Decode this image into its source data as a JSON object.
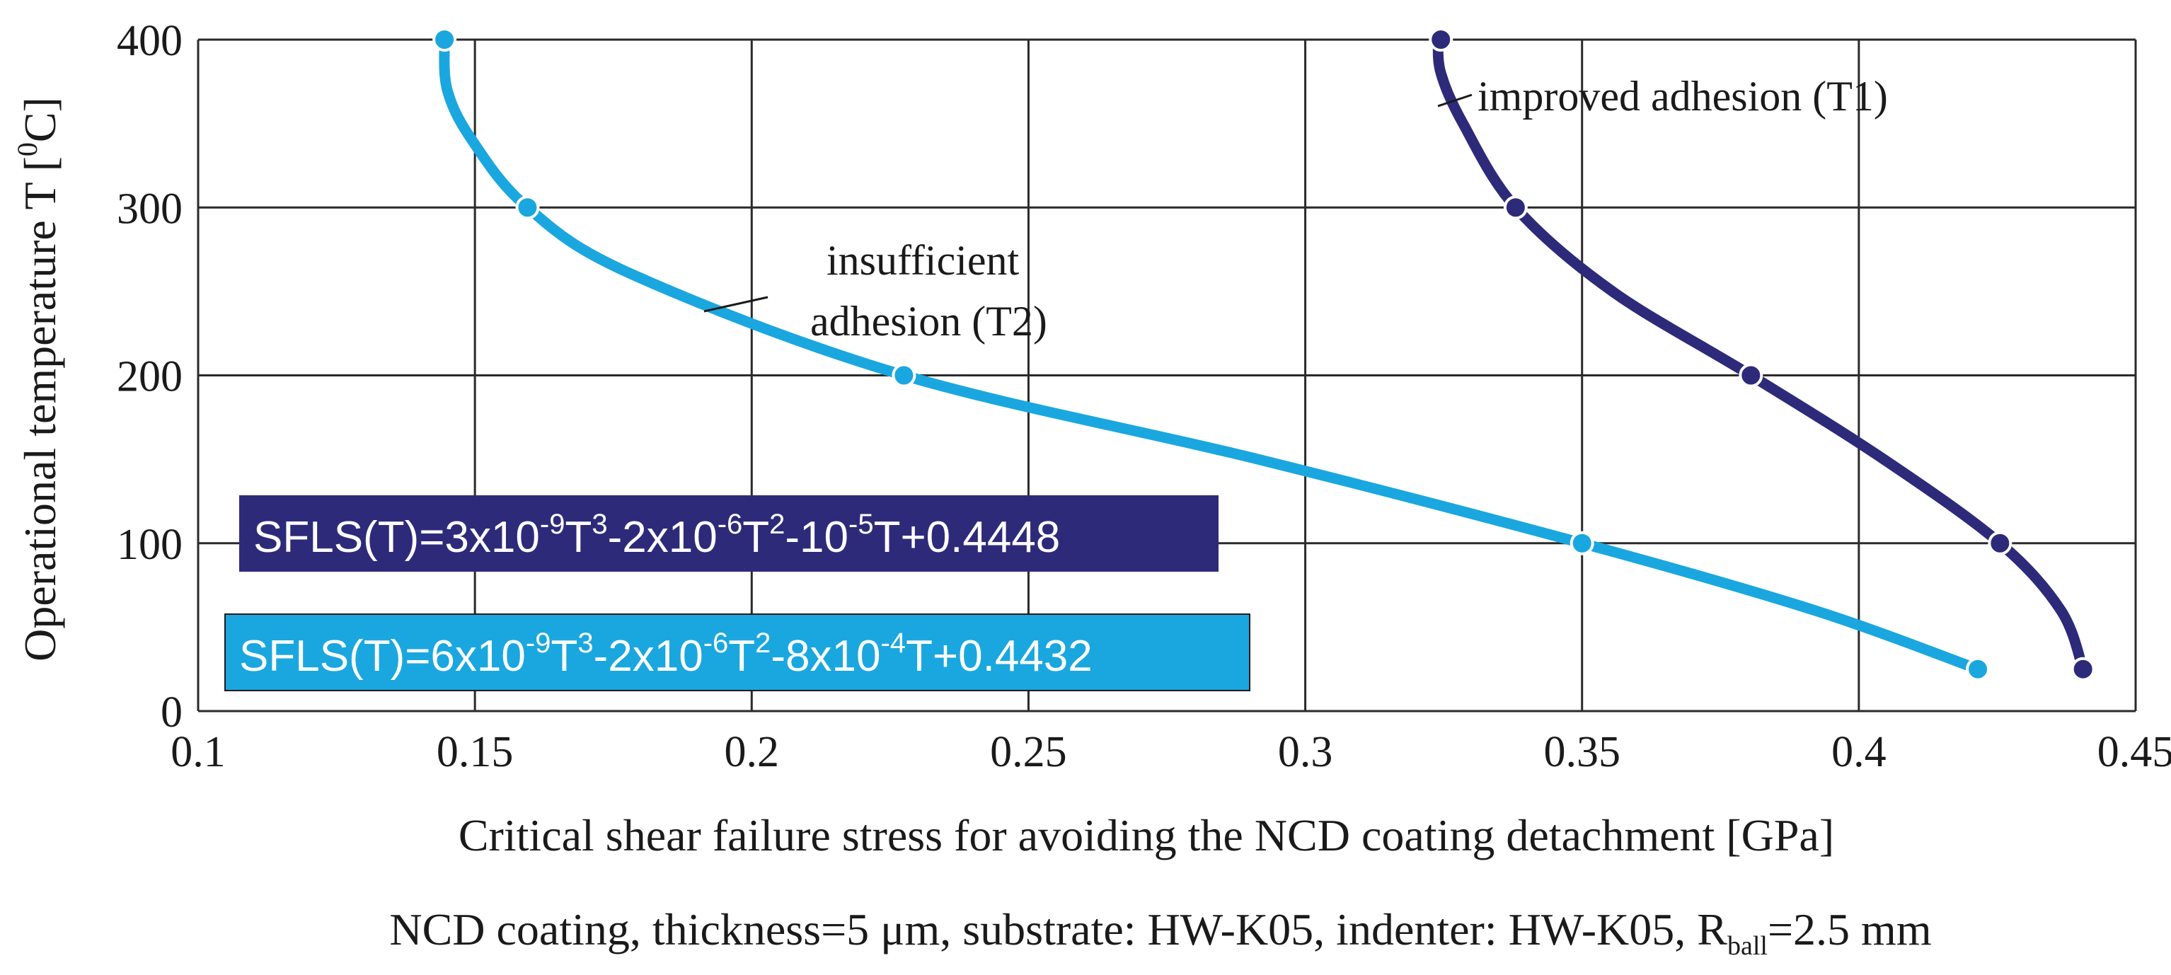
{
  "chart_data": {
    "type": "line",
    "title": "",
    "xlabel": "Critical shear failure stress for avoiding the NCD coating detachment [GPa]",
    "ylabel_main": "Operational temperature T [",
    "ylabel_sup": "0",
    "ylabel_tail": "C]",
    "xlim": [
      0.1,
      0.45
    ],
    "ylim": [
      0,
      400
    ],
    "x_ticks": [
      0.1,
      0.15,
      0.2,
      0.25,
      0.3,
      0.35,
      0.4,
      0.45
    ],
    "x_tick_labels": [
      "0.1",
      "0.15",
      "0.2",
      "0.25",
      "0.3",
      "0.35",
      "0.4",
      "0.45"
    ],
    "y_ticks": [
      0,
      100,
      200,
      300,
      400
    ],
    "y_tick_labels": [
      "0",
      "100",
      "200",
      "300",
      "400"
    ],
    "grid": true,
    "series": [
      {
        "name": "improved adhesion (T1)",
        "color": "#2e2a7a",
        "markers": [
          [
            0.3245,
            400
          ],
          [
            0.338,
            300
          ],
          [
            0.3805,
            200
          ],
          [
            0.4255,
            100
          ],
          [
            0.4405,
            25
          ]
        ],
        "curve": [
          [
            0.324,
            400
          ],
          [
            0.3245,
            380
          ],
          [
            0.3285,
            350
          ],
          [
            0.338,
            300
          ],
          [
            0.3555,
            250
          ],
          [
            0.3805,
            200
          ],
          [
            0.4045,
            150
          ],
          [
            0.4255,
            100
          ],
          [
            0.4365,
            60
          ],
          [
            0.4405,
            25
          ]
        ]
      },
      {
        "name": "insufficient adhesion (T2)",
        "color": "#1aa7df",
        "markers": [
          [
            0.1445,
            400
          ],
          [
            0.1595,
            300
          ],
          [
            0.2275,
            200
          ],
          [
            0.35,
            100
          ],
          [
            0.4215,
            25
          ]
        ],
        "curve": [
          [
            0.1445,
            400
          ],
          [
            0.145,
            370
          ],
          [
            0.1495,
            340
          ],
          [
            0.1595,
            300
          ],
          [
            0.1785,
            260
          ],
          [
            0.2275,
            200
          ],
          [
            0.2915,
            150
          ],
          [
            0.35,
            100
          ],
          [
            0.392,
            60
          ],
          [
            0.4215,
            25
          ]
        ]
      }
    ],
    "annotations": {
      "t1_label": "improved adhesion (T1)",
      "t2_label_line1": "insufficient",
      "t2_label_line2": "adhesion (T2)"
    },
    "equations": {
      "t1": {
        "bg": "#2e2a7a",
        "parts": [
          "SFLS(T)=3x10",
          "-9",
          "T",
          "3",
          "-2x10",
          "-6",
          "T",
          "2",
          "-10",
          "-5",
          "T+0.4448"
        ]
      },
      "t2": {
        "bg": "#1aa7df",
        "parts": [
          "SFLS(T)=6x10",
          "-9",
          "T",
          "3",
          "-2x10",
          "-6",
          "T",
          "2",
          "-8x10",
          "-4",
          "T+0.4432"
        ]
      }
    },
    "caption": {
      "main": "NCD coating, thickness=5 μm, substrate: HW-K05, indenter: HW-K05, R",
      "sub": "ball",
      "tail": "=2.5 mm"
    }
  }
}
